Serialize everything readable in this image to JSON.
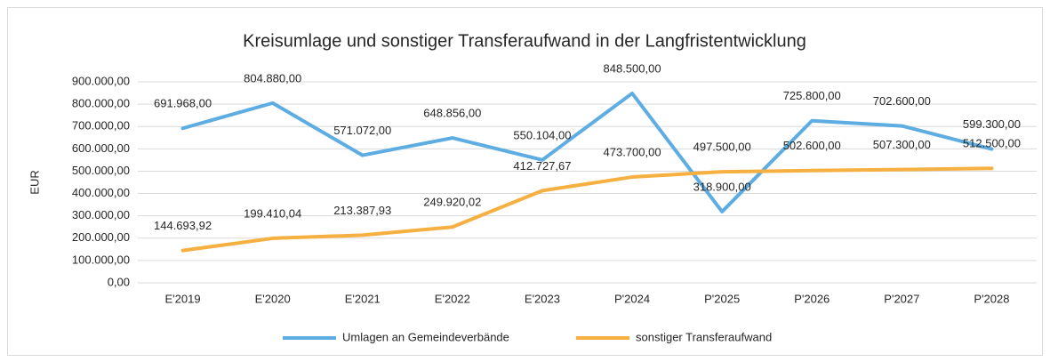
{
  "chart_data": {
    "type": "line",
    "title": "Kreisumlage und sonstiger Transferaufwand in der Langfristentwicklung",
    "y_label": "EUR",
    "categories": [
      "E'2019",
      "E'2020",
      "E'2021",
      "E'2022",
      "E'2023",
      "P'2024",
      "P'2025",
      "P'2026",
      "P'2027",
      "P'2028"
    ],
    "series": [
      {
        "name": "Umlagen an Gemeindeverbände",
        "color": "#5dade2",
        "values": [
          691968,
          804880,
          571072,
          648856,
          550104,
          848500,
          318900,
          725800,
          702600,
          599300
        ],
        "value_labels": [
          "691.968,00",
          "804.880,00",
          "571.072,00",
          "648.856,00",
          "550.104,00",
          "848.500,00",
          "318.900,00",
          "725.800,00",
          "702.600,00",
          "599.300,00"
        ]
      },
      {
        "name": "sonstiger Transferaufwand",
        "color": "#f5b041",
        "values": [
          144693.92,
          199410.04,
          213387.93,
          249920.02,
          412727.67,
          473700,
          497500,
          502600,
          507300,
          512500
        ],
        "value_labels": [
          "144.693,92",
          "199.410,04",
          "213.387,93",
          "249.920,02",
          "412.727,67",
          "473.700,00",
          "497.500,00",
          "502.600,00",
          "507.300,00",
          "512.500,00"
        ]
      }
    ],
    "ylim": [
      0,
      900000
    ],
    "yticks": [
      {
        "value": 0,
        "label": "0,00"
      },
      {
        "value": 100000,
        "label": "100.000,00"
      },
      {
        "value": 200000,
        "label": "200.000,00"
      },
      {
        "value": 300000,
        "label": "300.000,00"
      },
      {
        "value": 400000,
        "label": "400.000,00"
      },
      {
        "value": 500000,
        "label": "500.000,00"
      },
      {
        "value": 600000,
        "label": "600.000,00"
      },
      {
        "value": 700000,
        "label": "700.000,00"
      },
      {
        "value": 800000,
        "label": "800.000,00"
      },
      {
        "value": 900000,
        "label": "900.000,00"
      }
    ],
    "grid": true,
    "legend": "bottom"
  }
}
